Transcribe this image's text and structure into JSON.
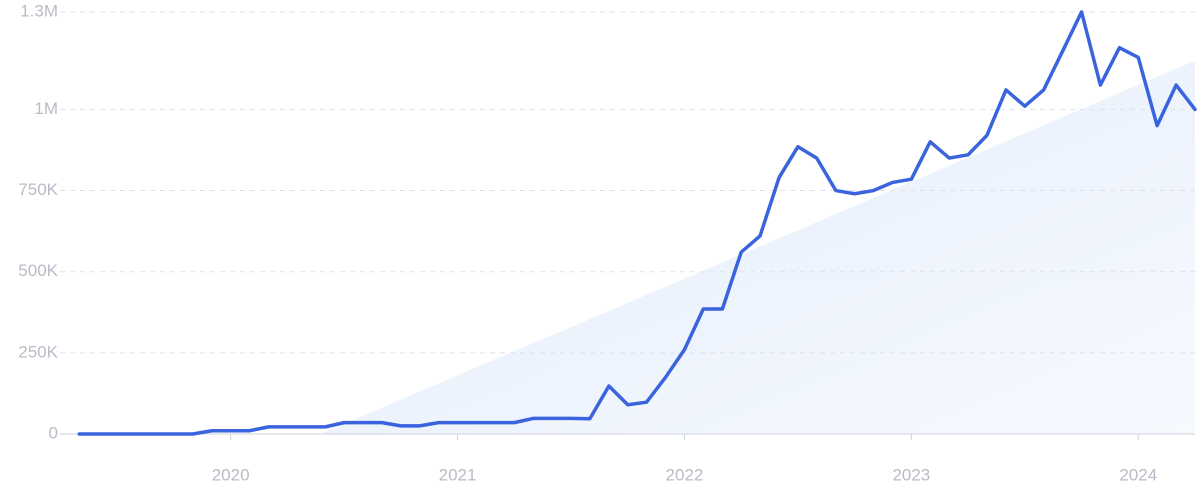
{
  "chart_data": {
    "type": "line",
    "x": [
      2019.333,
      2019.417,
      2019.5,
      2019.583,
      2019.667,
      2019.75,
      2019.833,
      2019.917,
      2020,
      2020.083,
      2020.167,
      2020.25,
      2020.333,
      2020.417,
      2020.5,
      2020.583,
      2020.667,
      2020.75,
      2020.833,
      2020.917,
      2021,
      2021.083,
      2021.167,
      2021.25,
      2021.333,
      2021.417,
      2021.5,
      2021.583,
      2021.667,
      2021.75,
      2021.833,
      2021.917,
      2022,
      2022.083,
      2022.167,
      2022.25,
      2022.333,
      2022.417,
      2022.5,
      2022.583,
      2022.667,
      2022.75,
      2022.833,
      2022.917,
      2023,
      2023.083,
      2023.167,
      2023.25,
      2023.333,
      2023.417,
      2023.5,
      2023.583,
      2023.667,
      2023.75,
      2023.833,
      2023.917,
      2024,
      2024.083,
      2024.167,
      2024.25
    ],
    "values": [
      0,
      0,
      0,
      0,
      0,
      0,
      0,
      10000,
      10000,
      10000,
      22000,
      22000,
      22000,
      22000,
      35000,
      35000,
      35000,
      25000,
      25000,
      35000,
      35000,
      35000,
      35000,
      35000,
      48000,
      48000,
      48000,
      47000,
      148000,
      90000,
      98000,
      175000,
      260000,
      385000,
      385000,
      560000,
      610000,
      790000,
      885000,
      850000,
      750000,
      740000,
      750000,
      775000,
      785000,
      900000,
      850000,
      860000,
      920000,
      1060000,
      1010000,
      1060000,
      1180000,
      1300000,
      1075000,
      1190000,
      1160000,
      950000,
      1075000,
      1000000
    ],
    "color": "#3a63de",
    "trend": {
      "x": [
        2020.396,
        2024.25
      ],
      "values": [
        0,
        1150000
      ],
      "color": "#dbe8fb"
    },
    "xlim": [
      2019.27,
      2024.25
    ],
    "xticks": [
      2020,
      2021,
      2022,
      2023,
      2024
    ],
    "ylim": [
      0,
      1300000
    ],
    "yticks": [
      0,
      {
        "value": 250000,
        "label": "250K"
      },
      {
        "value": 500000,
        "label": "500K"
      },
      {
        "value": 750000,
        "label": "750K"
      },
      {
        "value": 1000000,
        "label": "1M"
      },
      {
        "value": 1300000,
        "label": "1.3M"
      }
    ],
    "grid": true
  }
}
